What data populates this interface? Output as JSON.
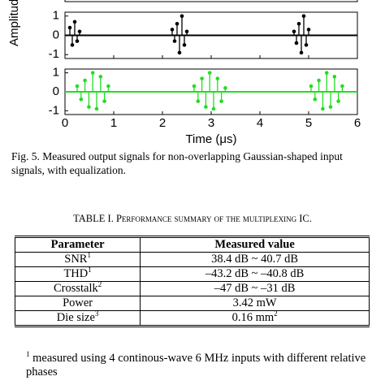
{
  "chart_data": [
    {
      "type": "stem",
      "color": "#000000",
      "x": [
        0.1,
        0.15,
        0.2,
        0.25,
        0.3,
        2.2,
        2.25,
        2.3,
        2.35,
        2.4,
        2.45,
        2.5,
        4.7,
        4.75,
        4.8,
        4.85,
        4.9,
        4.95,
        5.0
      ],
      "values": [
        0.4,
        -0.5,
        0.7,
        -0.3,
        0.2,
        0.3,
        -0.3,
        0.6,
        -0.9,
        1.0,
        -0.5,
        0.2,
        0.2,
        -0.4,
        0.6,
        -0.9,
        1.0,
        -0.5,
        0.3
      ],
      "xlim": [
        0,
        6
      ],
      "ylim": [
        -1.2,
        1.2
      ],
      "xticks": [
        0,
        1,
        2,
        3,
        4,
        5,
        6
      ],
      "yticks": [
        -1,
        0,
        1
      ]
    },
    {
      "type": "stem",
      "color": "#22dd22",
      "x": [
        0.25,
        0.33,
        0.41,
        0.49,
        0.57,
        0.65,
        0.73,
        0.81,
        0.89,
        2.65,
        2.73,
        2.81,
        2.89,
        2.97,
        3.05,
        3.13,
        3.21,
        3.29,
        5.05,
        5.13,
        5.21,
        5.29,
        5.37,
        5.45,
        5.53,
        5.61,
        5.69
      ],
      "values": [
        0.3,
        -0.4,
        0.6,
        -0.8,
        1.0,
        -0.9,
        0.8,
        -0.5,
        0.3,
        0.3,
        -0.5,
        0.7,
        -0.8,
        1.0,
        -0.9,
        0.7,
        -0.5,
        0.2,
        0.3,
        -0.4,
        0.6,
        -0.9,
        1.0,
        -0.8,
        0.8,
        -0.5,
        0.3
      ],
      "xlim": [
        0,
        6
      ],
      "ylim": [
        -1.2,
        1.2
      ],
      "xticks": [
        0,
        1,
        2,
        3,
        4,
        5,
        6
      ],
      "yticks": [
        -1,
        0,
        1
      ],
      "x_label": "Time (μs)"
    }
  ],
  "y_label": "Amplitude",
  "figure_caption": "Fig. 5. Measured output signals for non-overlapping Gaussian-shaped input signals, with equalization.",
  "table": {
    "title": "TABLE I. Performance summary of the multiplexing IC.",
    "header": [
      "Parameter",
      "Measured value"
    ],
    "rows": [
      [
        {
          "text": "SNR",
          "sup": "1"
        },
        {
          "text": "38.4 dB ~ 40.7 dB"
        }
      ],
      [
        {
          "text": "THD",
          "sup": "1"
        },
        {
          "text": "–43.2 dB ~ –40.8 dB"
        }
      ],
      [
        {
          "text": "Crosstalk",
          "sup": "2"
        },
        {
          "text": "–47 dB ~ –31 dB"
        }
      ],
      [
        {
          "text": "Power"
        },
        {
          "text": "3.42 mW"
        }
      ],
      [
        {
          "text": "Die size",
          "sup": "3"
        },
        {
          "text": "0.16 mm",
          "sup": "2"
        }
      ]
    ]
  },
  "footnote": {
    "marker": "1",
    "text": "measured using 4 continous-wave 6 MHz inputs with different relative phases"
  }
}
